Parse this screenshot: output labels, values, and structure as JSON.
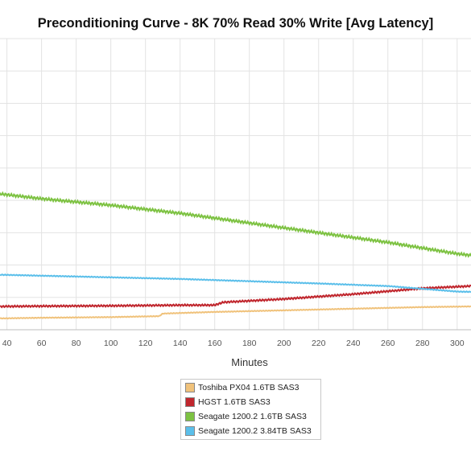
{
  "chart_data": {
    "type": "line",
    "title": "Preconditioning Curve - 8K 70% Read 30% Write [Avg Latency]",
    "xlabel": "Minutes",
    "ylabel": "",
    "x_ticks": [
      40,
      60,
      80,
      100,
      120,
      140,
      160,
      180,
      200,
      220,
      240,
      260,
      280,
      300
    ],
    "xlim": [
      36,
      308
    ],
    "ylim": [
      0,
      9
    ],
    "y_gridlines": [
      0,
      1,
      2,
      3,
      4,
      5,
      6,
      7,
      8,
      9
    ],
    "grid": true,
    "legend_position": "bottom",
    "series": [
      {
        "name": "Toshiba PX04 1.6TB SAS3",
        "color": "#f0c27b",
        "x": [
          36,
          60,
          100,
          128,
          130,
          160,
          200,
          240,
          280,
          308
        ],
        "y": [
          0.35,
          0.37,
          0.39,
          0.42,
          0.5,
          0.55,
          0.6,
          0.65,
          0.7,
          0.72
        ]
      },
      {
        "name": "HGST 1.6TB SAS3",
        "color": "#c0262d",
        "x": [
          36,
          60,
          100,
          140,
          160,
          165,
          200,
          240,
          280,
          308
        ],
        "y": [
          0.72,
          0.73,
          0.74,
          0.76,
          0.76,
          0.85,
          0.95,
          1.1,
          1.28,
          1.35
        ]
      },
      {
        "name": "Seagate 1200.2 1.6TB SAS3",
        "color": "#7dc242",
        "x": [
          36,
          60,
          100,
          140,
          180,
          220,
          260,
          300,
          308
        ],
        "y": [
          4.2,
          4.05,
          3.85,
          3.6,
          3.3,
          3.0,
          2.7,
          2.35,
          2.3
        ]
      },
      {
        "name": "Seagate 1200.2 3.84TB SAS3",
        "color": "#5bbfea",
        "x": [
          36,
          60,
          100,
          140,
          180,
          220,
          260,
          300,
          308
        ],
        "y": [
          1.7,
          1.67,
          1.62,
          1.57,
          1.5,
          1.43,
          1.35,
          1.18,
          1.17
        ]
      }
    ]
  }
}
